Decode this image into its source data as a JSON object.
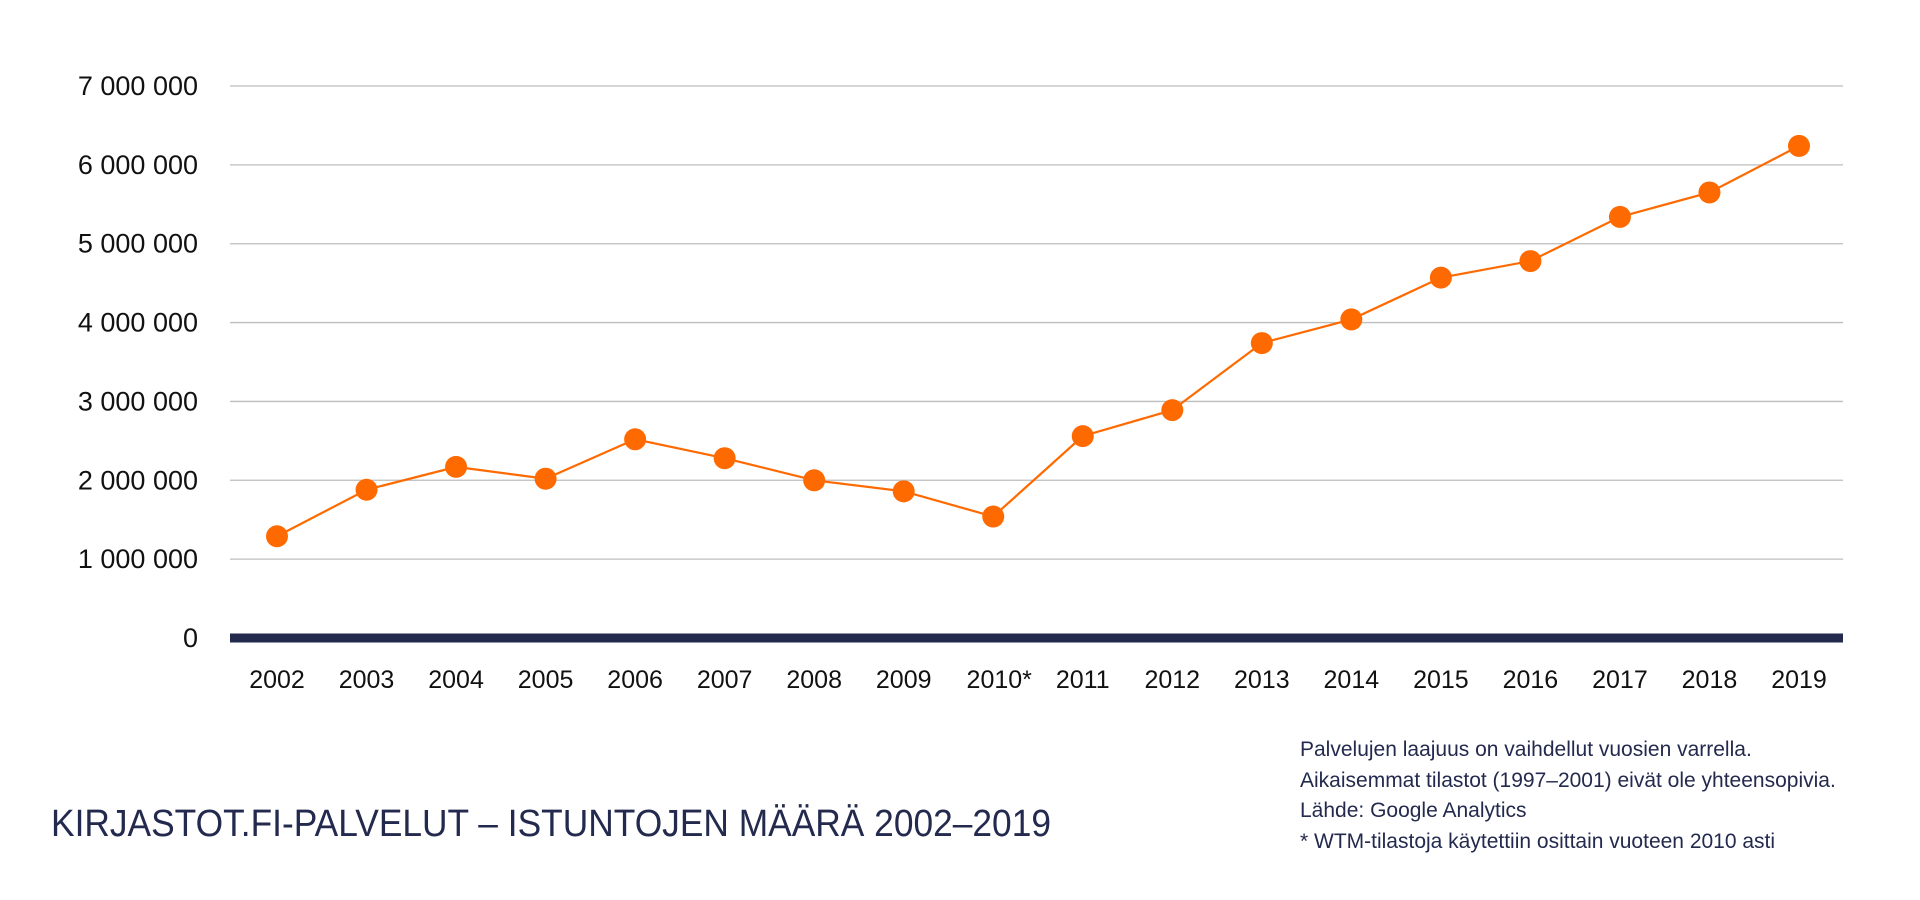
{
  "chart_data": {
    "type": "line",
    "title": "KIRJASTOT.FI-PALVELUT – ISTUNTOJEN MÄÄRÄ 2002–2019",
    "xlabel": "",
    "ylabel": "",
    "categories": [
      "2002",
      "2003",
      "2004",
      "2005",
      "2006",
      "2007",
      "2008",
      "2009",
      "2010*",
      "2011",
      "2012",
      "2013",
      "2014",
      "2015",
      "2016",
      "2017",
      "2018",
      "2019"
    ],
    "values": [
      1290000,
      1880000,
      2170000,
      2020000,
      2520000,
      2280000,
      2000000,
      1860000,
      1540000,
      2560000,
      2890000,
      3740000,
      4040000,
      4570000,
      4780000,
      5340000,
      5650000,
      6240000
    ],
    "ylim": [
      0,
      7000000
    ],
    "yticks": [
      0,
      1000000,
      2000000,
      3000000,
      4000000,
      5000000,
      6000000,
      7000000
    ],
    "ytick_labels": [
      "0",
      "1 000 000",
      "2 000 000",
      "3 000 000",
      "4 000 000",
      "5 000 000",
      "6 000 000",
      "7 000 000"
    ],
    "grid": true,
    "legend": "none",
    "colors": {
      "series": "#ff6a00",
      "axis": "#232a4e",
      "grid": "#bdbdbd",
      "text": "#232a4e"
    }
  },
  "notes": [
    "Palvelujen laajuus on vaihdellut vuosien varrella.",
    "Aikaisemmat tilastot (1997–2001) eivät ole yhteensopivia.",
    "Lähde: Google Analytics",
    "* WTM-tilastoja käytettiin osittain vuoteen 2010 asti"
  ]
}
